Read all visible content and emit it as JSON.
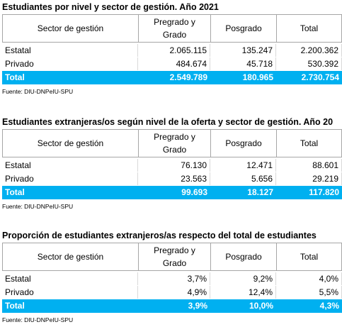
{
  "tables": [
    {
      "title": "Estudiantes por nivel y sector de gestión. Año 2021",
      "header": [
        "Sector de gestión",
        "Pregrado y Grado",
        "Posgrado",
        "Total"
      ],
      "rows": [
        [
          "Estatal",
          "2.065.115",
          "135.247",
          "2.200.362"
        ],
        [
          "Privado",
          "484.674",
          "45.718",
          "530.392"
        ]
      ],
      "total": [
        "Total",
        "2.549.789",
        "180.965",
        "2.730.754"
      ],
      "source": "Fuente: DIU-DNPeIU-SPU"
    },
    {
      "title": "Estudiantes extranjeras/os según nivel de la oferta y sector de gestión. Año 20",
      "header": [
        "Sector de gestión",
        "Pregrado y Grado",
        "Posgrado",
        "Total"
      ],
      "rows": [
        [
          "Estatal",
          "76.130",
          "12.471",
          "88.601"
        ],
        [
          "Privado",
          "23.563",
          "5.656",
          "29.219"
        ]
      ],
      "total": [
        "Total",
        "99.693",
        "18.127",
        "117.820"
      ],
      "source": "Fuente: DIU-DNPeIU-SPU"
    },
    {
      "title": "Proporción de estudiantes extranjeros/as respecto del total de estudiantes",
      "header": [
        "Sector de gestión",
        "Pregrado y Grado",
        "Posgrado",
        "Total"
      ],
      "rows": [
        [
          "Estatal",
          "3,7%",
          "9,2%",
          "4,0%"
        ],
        [
          "Privado",
          "4,9%",
          "12,4%",
          "5,5%"
        ]
      ],
      "total": [
        "Total",
        "3,9%",
        "10,0%",
        "4,3%"
      ],
      "source": "Fuente: DIU-DNPeIU-SPU"
    }
  ]
}
